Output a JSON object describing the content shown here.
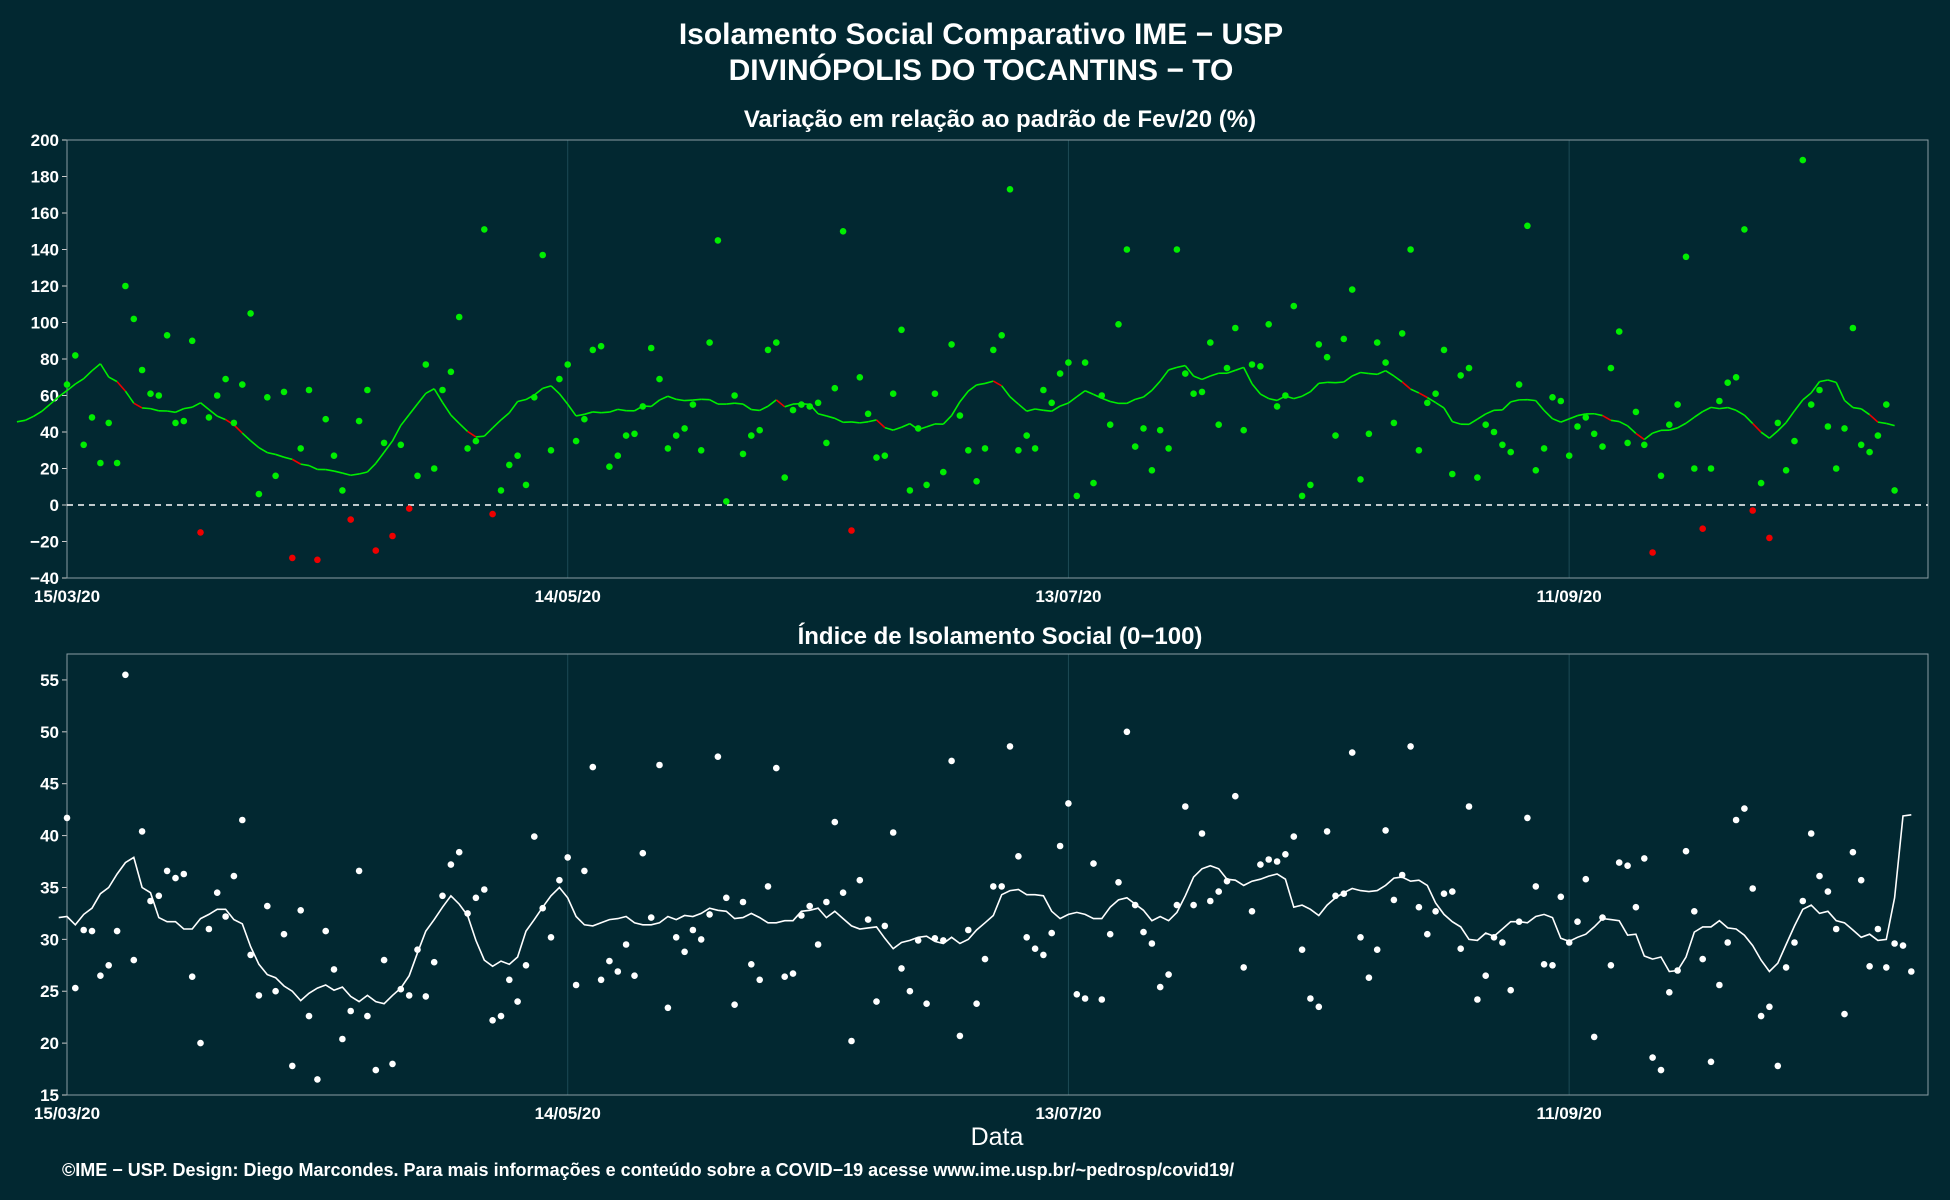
{
  "header": {
    "title_line1": "Isolamento Social Comparativo IME − USP",
    "title_line2": "DIVINÓPOLIS DO TOCANTINS − TO"
  },
  "footer": {
    "xlabel": "Data",
    "credits": "©IME − USP. Design: Diego Marcondes. Para mais informações e conteúdo sobre a COVID−19 acesse www.ime.usp.br/~pedrosp/covid19/"
  },
  "colors": {
    "background": "#022831",
    "positive": "#00ee00",
    "negative": "#ee0000",
    "white": "#ffffff",
    "grid": "#1d4a55"
  },
  "chart_data": [
    {
      "type": "scatter",
      "title": "Variação em relação ao padrão de Fev/20 (%)",
      "xlabel": "",
      "ylabel": "",
      "x_start": "15/03/20",
      "x_end": "24/10/20",
      "xticks": [
        "15/03/20",
        "14/05/20",
        "13/07/20",
        "11/09/20"
      ],
      "ylim": [
        -40,
        200
      ],
      "yticks": [
        -40,
        -20,
        0,
        20,
        40,
        60,
        80,
        100,
        120,
        140,
        160,
        180,
        200
      ],
      "reference_line": 0,
      "grid": true,
      "values": [
        66.0,
        82.0,
        33.0,
        48.0,
        23.0,
        45.0,
        23.0,
        120.0,
        102.0,
        74.0,
        61.0,
        60.0,
        93.0,
        45.0,
        46.0,
        90.0,
        -15.0,
        48.0,
        60.0,
        69.0,
        45.0,
        66.0,
        105.0,
        6.0,
        59.0,
        16.0,
        62.0,
        -29.0,
        31.0,
        63.0,
        -30.0,
        47.0,
        27.0,
        8.0,
        -8.0,
        46.0,
        63.0,
        -25.0,
        34.0,
        -17.0,
        33.0,
        -2.0,
        16.0,
        77.0,
        20.0,
        63.0,
        73.0,
        103.0,
        31.0,
        35.0,
        151.0,
        -5.0,
        8.0,
        22.0,
        27.0,
        11.0,
        59.0,
        137.0,
        30.0,
        69.0,
        77.0,
        35.0,
        47.0,
        85.0,
        87.0,
        21.0,
        27.0,
        38.0,
        39.0,
        54.0,
        86.0,
        69.0,
        31.0,
        38.0,
        42.0,
        55.0,
        30.0,
        89.0,
        145.0,
        2.0,
        60.0,
        28.0,
        38.0,
        41.0,
        85.0,
        89.0,
        15.0,
        52.0,
        55.0,
        54.0,
        56.0,
        34.0,
        64.0,
        150.0,
        -14.0,
        70.0,
        50.0,
        26.0,
        27.0,
        61.0,
        96.0,
        8.0,
        42.0,
        11.0,
        61.0,
        18.0,
        88.0,
        49.0,
        30.0,
        13.0,
        31.0,
        85.0,
        93.0,
        173.0,
        30.0,
        38.0,
        31.0,
        63.0,
        56.0,
        72.0,
        78.0,
        5.0,
        78.0,
        12.0,
        60.0,
        44.0,
        99.0,
        140.0,
        32.0,
        42.0,
        19.0,
        41.0,
        31.0,
        140.0,
        72.0,
        61.0,
        62.0,
        89.0,
        44.0,
        75.0,
        97.0,
        41.0,
        77.0,
        76.0,
        99.0,
        54.0,
        60.0,
        109.0,
        5.0,
        11.0,
        88.0,
        81.0,
        38.0,
        91.0,
        118.0,
        14.0,
        39.0,
        89.0,
        78.0,
        45.0,
        94.0,
        140.0,
        30.0,
        56.0,
        61.0,
        85.0,
        17.0,
        71.0,
        75.0,
        15.0,
        44.0,
        40.0,
        33.0,
        29.0,
        66.0,
        153.0,
        19.0,
        31.0,
        59.0,
        57.0,
        27.0,
        43.0,
        48.0,
        39.0,
        32.0,
        75.0,
        95.0,
        34.0,
        51.0,
        33.0,
        -26.0,
        16.0,
        44.0,
        55.0,
        136.0,
        20.0,
        -13.0,
        20.0,
        57.0,
        67.0,
        70.0,
        151.0,
        -3.0,
        12.0,
        -18.0,
        45.0,
        19.0,
        35.0,
        189.0,
        55.0,
        63.0,
        43.0,
        20.0,
        42.0,
        97.0,
        33.0,
        29.0,
        38.0,
        55.0,
        8.0
      ],
      "moving_average": [
        45.6,
        46.4,
        48.6,
        51.4,
        55.3,
        59.3,
        62.7,
        66.3,
        69.2,
        73.6,
        77.4,
        70.1,
        67.6,
        62.4,
        55.8,
        53.2,
        52.8,
        51.6,
        51.5,
        50.8,
        52.8,
        53.6,
        56.0,
        52.3,
        48.7,
        46.8,
        43.9,
        39.4,
        35.2,
        31.4,
        28.7,
        27.7,
        26.2,
        25.0,
        22.4,
        21.6,
        19.5,
        19.4,
        18.6,
        17.5,
        16.3,
        17.0,
        18.1,
        22.8,
        28.9,
        35.1,
        43.6,
        49.5,
        55.4,
        61.2,
        63.7,
        56.2,
        49.3,
        44.7,
        40.3,
        37.3,
        37.7,
        42.2,
        46.6,
        50.5,
        56.7,
        57.8,
        60.3,
        63.9,
        65.3,
        61.0,
        55.2,
        48.8,
        49.7,
        51.0,
        50.6,
        50.9,
        52.4,
        51.7,
        51.6,
        54.2,
        54.0,
        57.5,
        59.6,
        57.9,
        57.2,
        57.5,
        57.9,
        57.7,
        55.3,
        55.3,
        55.8,
        55.3,
        52.3,
        51.8,
        54.1,
        57.6,
        53.8,
        55.3,
        55.5,
        55.1,
        50.0,
        48.8,
        47.5,
        45.3,
        45.5,
        45.0,
        45.6,
        46.6,
        42.4,
        41.0,
        42.6,
        44.6,
        41.3,
        42.8,
        44.4,
        44.3,
        49.0,
        56.6,
        62.4,
        65.8,
        66.6,
        67.9,
        65.3,
        59.3,
        55.3,
        51.4,
        52.6,
        51.9,
        51.4,
        54.2,
        55.9,
        59.3,
        62.6,
        60.6,
        58.5,
        56.7,
        55.7,
        55.7,
        57.9,
        59.2,
        62.8,
        67.9,
        74.0,
        75.4,
        76.4,
        70.6,
        68.8,
        70.7,
        72.2,
        72.2,
        73.8,
        75.4,
        66.4,
        60.8,
        58.3,
        57.3,
        59.7,
        58.3,
        59.6,
        62.1,
        66.7,
        67.2,
        67.0,
        67.4,
        70.7,
        72.6,
        72.0,
        71.6,
        73.6,
        70.7,
        67.4,
        63.5,
        61.4,
        58.9,
        56.1,
        53.2,
        45.7,
        44.3,
        44.2,
        47.0,
        49.9,
        51.9,
        52.1,
        56.5,
        57.6,
        57.7,
        57.2,
        51.8,
        47.3,
        45.4,
        47.2,
        49.0,
        49.9,
        50.0,
        49.0,
        46.4,
        45.7,
        43.4,
        39.2,
        35.9,
        39.4,
        40.9,
        41.0,
        42.3,
        44.8,
        48.1,
        51.2,
        53.5,
        52.8,
        53.4,
        51.9,
        49.2,
        44.6,
        39.9,
        36.6,
        40.6,
        45.2,
        51.6,
        57.6,
        61.4,
        67.6,
        68.5,
        67.2,
        57.3,
        53.4,
        52.7,
        49.5,
        45.4,
        44.7,
        43.5
      ]
    },
    {
      "type": "scatter",
      "title": "Índice de Isolamento Social (0−100)",
      "xlabel": "Data",
      "ylabel": "",
      "x_start": "15/03/20",
      "x_end": "24/10/20",
      "xticks": [
        "15/03/20",
        "14/05/20",
        "13/07/20",
        "11/09/20"
      ],
      "ylim": [
        15,
        57.5
      ],
      "yticks": [
        15,
        20,
        25,
        30,
        35,
        40,
        45,
        50,
        55
      ],
      "grid": true,
      "values": [
        41.7,
        25.3,
        30.9,
        30.8,
        26.5,
        27.5,
        30.8,
        55.5,
        28.0,
        40.4,
        33.7,
        34.2,
        36.6,
        35.9,
        36.3,
        26.4,
        20.0,
        31.0,
        34.5,
        32.2,
        36.1,
        41.5,
        28.5,
        24.6,
        33.2,
        25.0,
        30.5,
        17.8,
        32.8,
        22.6,
        16.5,
        30.8,
        27.1,
        20.4,
        23.1,
        36.6,
        22.6,
        17.4,
        28.0,
        18.0,
        25.2,
        24.6,
        29.0,
        24.5,
        27.8,
        34.2,
        37.2,
        38.4,
        32.5,
        34.0,
        34.8,
        22.2,
        22.6,
        26.1,
        24.0,
        27.5,
        39.9,
        33.0,
        30.2,
        35.7,
        37.9,
        25.6,
        36.6,
        46.6,
        26.1,
        27.9,
        26.9,
        29.5,
        26.5,
        38.3,
        32.1,
        46.8,
        23.4,
        30.2,
        28.8,
        30.9,
        30.0,
        32.4,
        47.6,
        34.0,
        23.7,
        33.6,
        27.6,
        26.1,
        35.1,
        46.5,
        26.4,
        26.7,
        32.3,
        33.2,
        29.5,
        33.6,
        41.3,
        34.5,
        20.2,
        35.7,
        31.9,
        24.0,
        31.3,
        40.3,
        27.2,
        25.0,
        29.9,
        23.8,
        30.1,
        29.9,
        47.2,
        20.7,
        30.9,
        23.8,
        28.1,
        35.1,
        35.1,
        48.6,
        38.0,
        30.2,
        29.1,
        28.5,
        30.6,
        39.0,
        43.1,
        24.7,
        24.3,
        37.3,
        24.2,
        30.5,
        35.5,
        50.0,
        33.3,
        30.7,
        29.6,
        25.4,
        26.6,
        33.3,
        42.8,
        33.3,
        40.2,
        33.7,
        34.6,
        35.6,
        43.8,
        27.3,
        32.7,
        37.2,
        37.7,
        37.5,
        38.2,
        39.9,
        29.0,
        24.3,
        23.5,
        40.4,
        34.2,
        34.4,
        48.0,
        30.2,
        26.3,
        29.0,
        40.5,
        33.8,
        36.2,
        48.6,
        33.1,
        30.5,
        32.7,
        34.4,
        34.6,
        29.1,
        42.8,
        24.2,
        26.5,
        30.2,
        29.7,
        25.1,
        31.7,
        41.7,
        35.1,
        27.6,
        27.5,
        34.1,
        29.7,
        31.7,
        35.8,
        20.6,
        32.1,
        27.5,
        37.4,
        37.1,
        33.1,
        37.8,
        18.6,
        17.4,
        24.9,
        27.0,
        38.5,
        32.7,
        28.1,
        18.2,
        25.6,
        29.7,
        41.5,
        42.6,
        34.9,
        22.6,
        23.5,
        17.8,
        27.3,
        29.7,
        33.7,
        40.2,
        36.1,
        34.6,
        31.0,
        22.8,
        38.4,
        35.7,
        27.4,
        31.0,
        27.3,
        29.6,
        29.4,
        26.9
      ],
      "moving_average": [
        32.1,
        32.2,
        31.4,
        32.4,
        33.0,
        34.4,
        35.0,
        36.3,
        37.4,
        37.9,
        35.0,
        34.5,
        32.1,
        31.7,
        31.7,
        31.0,
        31.0,
        32.0,
        32.4,
        32.9,
        32.9,
        31.9,
        31.5,
        29.3,
        27.6,
        26.6,
        26.3,
        25.5,
        25.0,
        24.1,
        24.8,
        25.3,
        25.6,
        25.1,
        25.4,
        24.5,
        24.0,
        24.6,
        24.0,
        23.8,
        24.6,
        25.3,
        26.5,
        28.7,
        30.8,
        31.9,
        33.1,
        34.2,
        33.4,
        32.3,
        29.9,
        28.0,
        27.4,
        27.9,
        27.6,
        28.3,
        30.8,
        31.9,
        33.1,
        34.2,
        35.0,
        34.0,
        32.2,
        31.4,
        31.3,
        31.6,
        31.9,
        32.0,
        32.2,
        31.6,
        31.4,
        31.4,
        31.6,
        32.2,
        31.9,
        32.3,
        32.2,
        32.5,
        33.0,
        32.8,
        32.7,
        32.0,
        32.1,
        32.5,
        32.1,
        31.6,
        31.6,
        31.8,
        31.8,
        32.7,
        32.8,
        33.0,
        32.1,
        32.7,
        32.0,
        31.3,
        31.0,
        31.1,
        31.2,
        30.1,
        29.1,
        29.7,
        29.9,
        30.2,
        30.3,
        29.8,
        29.6,
        30.2,
        29.6,
        30.0,
        30.9,
        31.6,
        32.3,
        34.3,
        34.7,
        34.8,
        34.3,
        34.3,
        34.2,
        32.7,
        32.0,
        32.4,
        32.6,
        32.4,
        32.0,
        32.0,
        33.1,
        33.8,
        34.0,
        33.4,
        32.8,
        31.8,
        32.2,
        31.8,
        32.6,
        34.2,
        36.0,
        36.8,
        37.1,
        36.8,
        35.8,
        35.7,
        35.2,
        35.6,
        35.8,
        36.1,
        36.3,
        35.8,
        33.1,
        33.3,
        32.9,
        32.3,
        33.3,
        34.0,
        34.5,
        34.9,
        34.7,
        34.6,
        34.7,
        35.2,
        35.9,
        36.0,
        35.6,
        35.7,
        35.2,
        33.5,
        32.4,
        31.7,
        31.2,
        30.0,
        29.9,
        30.6,
        30.3,
        31.0,
        31.7,
        31.7,
        31.6,
        32.2,
        32.4,
        32.1,
        30.1,
        29.8,
        30.2,
        30.5,
        31.2,
        32.0,
        31.9,
        31.8,
        30.4,
        30.5,
        28.4,
        28.1,
        28.3,
        26.9,
        27.0,
        28.3,
        30.7,
        31.2,
        31.2,
        31.8,
        31.1,
        31.0,
        30.4,
        29.4,
        28.0,
        26.9,
        27.7,
        29.5,
        31.3,
        32.9,
        33.3,
        32.5,
        32.7,
        31.8,
        31.6,
        30.9,
        30.2,
        30.5,
        29.9,
        30.0,
        34.0,
        41.9,
        42.0
      ]
    }
  ]
}
